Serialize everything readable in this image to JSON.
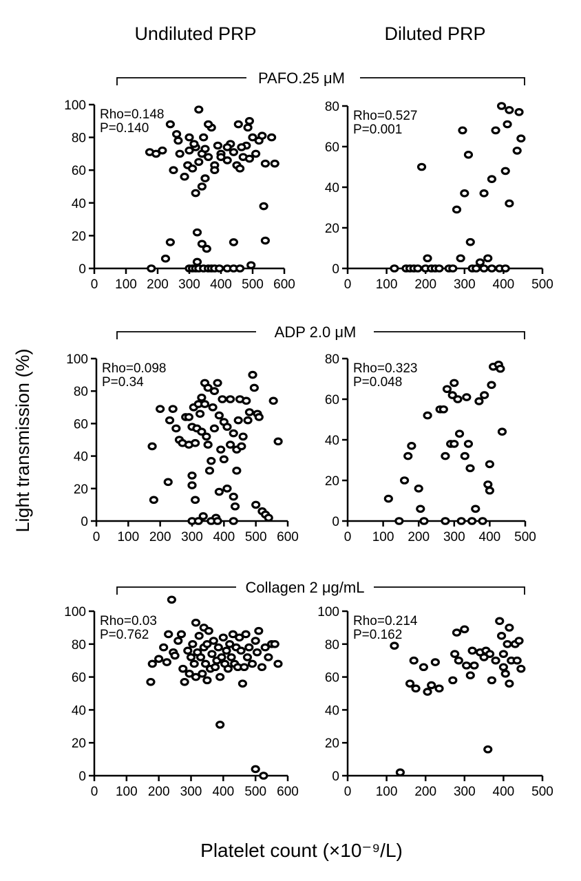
{
  "figure": {
    "col_left": "Undiluted PRP",
    "col_right": "Diluted PRP",
    "ylabel": "Light transmission (%)",
    "xlabel": "Platelet count (×10⁻⁹/L)"
  },
  "groups": [
    {
      "label": "PAFO.25 μM"
    },
    {
      "label": "ADP 2.0 μM"
    },
    {
      "label": "Collagen 2 μg/mL"
    }
  ],
  "chart_data": [
    {
      "type": "scatter",
      "id": "pafo-undiluted",
      "group": 0,
      "column": "Undiluted PRP",
      "xlim": [
        0,
        600
      ],
      "ylim": [
        0,
        100
      ],
      "xticks": [
        0,
        100,
        200,
        300,
        400,
        500,
        600
      ],
      "yticks": [
        0,
        20,
        40,
        60,
        80,
        100
      ],
      "stats": [
        "Rho=0.148",
        "P=0.140"
      ],
      "points": [
        [
          175,
          71
        ],
        [
          195,
          70
        ],
        [
          215,
          72
        ],
        [
          240,
          88
        ],
        [
          250,
          60
        ],
        [
          260,
          82
        ],
        [
          270,
          70
        ],
        [
          265,
          78
        ],
        [
          285,
          56
        ],
        [
          295,
          63
        ],
        [
          300,
          72
        ],
        [
          310,
          61
        ],
        [
          320,
          74
        ],
        [
          330,
          65
        ],
        [
          340,
          70
        ],
        [
          350,
          55
        ],
        [
          350,
          73
        ],
        [
          360,
          68
        ],
        [
          370,
          86
        ],
        [
          380,
          63
        ],
        [
          390,
          75
        ],
        [
          400,
          70
        ],
        [
          420,
          66
        ],
        [
          440,
          71
        ],
        [
          450,
          63
        ],
        [
          460,
          61
        ],
        [
          470,
          68
        ],
        [
          480,
          75
        ],
        [
          490,
          67
        ],
        [
          500,
          80
        ],
        [
          510,
          70
        ],
        [
          520,
          78
        ],
        [
          530,
          81
        ],
        [
          540,
          64
        ],
        [
          560,
          80
        ],
        [
          570,
          64
        ],
        [
          330,
          97
        ],
        [
          360,
          88
        ],
        [
          380,
          60
        ],
        [
          430,
          76
        ],
        [
          455,
          88
        ],
        [
          490,
          90
        ],
        [
          340,
          50
        ],
        [
          320,
          46
        ],
        [
          300,
          80
        ],
        [
          345,
          80
        ],
        [
          315,
          76
        ],
        [
          400,
          68
        ],
        [
          420,
          74
        ],
        [
          465,
          74
        ],
        [
          485,
          86
        ],
        [
          535,
          38
        ],
        [
          540,
          17
        ],
        [
          180,
          0
        ],
        [
          225,
          6
        ],
        [
          240,
          16
        ],
        [
          325,
          22
        ],
        [
          340,
          15
        ],
        [
          355,
          12
        ],
        [
          325,
          4
        ],
        [
          300,
          0
        ],
        [
          310,
          0
        ],
        [
          320,
          0
        ],
        [
          330,
          0
        ],
        [
          345,
          0
        ],
        [
          360,
          0
        ],
        [
          370,
          0
        ],
        [
          380,
          0
        ],
        [
          395,
          0
        ],
        [
          420,
          0
        ],
        [
          440,
          0
        ],
        [
          460,
          0
        ],
        [
          495,
          2
        ],
        [
          440,
          16
        ]
      ]
    },
    {
      "type": "scatter",
      "id": "pafo-diluted",
      "group": 0,
      "column": "Diluted PRP",
      "xlim": [
        0,
        500
      ],
      "ylim": [
        0,
        80
      ],
      "xticks": [
        0,
        100,
        200,
        300,
        400,
        500
      ],
      "yticks": [
        0,
        20,
        40,
        60,
        80
      ],
      "stats": [
        "Rho=0.527",
        "P=0.001"
      ],
      "points": [
        [
          120,
          0
        ],
        [
          150,
          0
        ],
        [
          160,
          0
        ],
        [
          170,
          0
        ],
        [
          180,
          0
        ],
        [
          190,
          50
        ],
        [
          200,
          0
        ],
        [
          205,
          5
        ],
        [
          215,
          0
        ],
        [
          225,
          0
        ],
        [
          235,
          0
        ],
        [
          260,
          0
        ],
        [
          270,
          0
        ],
        [
          280,
          29
        ],
        [
          290,
          5
        ],
        [
          295,
          68
        ],
        [
          300,
          37
        ],
        [
          310,
          56
        ],
        [
          315,
          13
        ],
        [
          320,
          0
        ],
        [
          330,
          0
        ],
        [
          340,
          3
        ],
        [
          350,
          0
        ],
        [
          350,
          37
        ],
        [
          360,
          5
        ],
        [
          370,
          0
        ],
        [
          370,
          44
        ],
        [
          380,
          68
        ],
        [
          390,
          0
        ],
        [
          395,
          80
        ],
        [
          405,
          0
        ],
        [
          405,
          48
        ],
        [
          410,
          71
        ],
        [
          415,
          32
        ],
        [
          415,
          78
        ],
        [
          435,
          58
        ],
        [
          440,
          77
        ],
        [
          445,
          64
        ]
      ]
    },
    {
      "type": "scatter",
      "id": "adp-undiluted",
      "group": 1,
      "column": "Undiluted PRP",
      "xlim": [
        0,
        600
      ],
      "ylim": [
        0,
        100
      ],
      "xticks": [
        0,
        100,
        200,
        300,
        400,
        500,
        600
      ],
      "yticks": [
        0,
        20,
        40,
        60,
        80,
        100
      ],
      "stats": [
        "Rho=0.098",
        "P=0.34"
      ],
      "points": [
        [
          175,
          46
        ],
        [
          180,
          13
        ],
        [
          200,
          69
        ],
        [
          225,
          24
        ],
        [
          230,
          62
        ],
        [
          240,
          69
        ],
        [
          250,
          57
        ],
        [
          260,
          50
        ],
        [
          270,
          48
        ],
        [
          280,
          64
        ],
        [
          290,
          64
        ],
        [
          290,
          47
        ],
        [
          300,
          22
        ],
        [
          300,
          28
        ],
        [
          300,
          58
        ],
        [
          305,
          70
        ],
        [
          310,
          13
        ],
        [
          310,
          48
        ],
        [
          315,
          57
        ],
        [
          320,
          72
        ],
        [
          325,
          66
        ],
        [
          330,
          55
        ],
        [
          330,
          76
        ],
        [
          335,
          3
        ],
        [
          340,
          72
        ],
        [
          340,
          85
        ],
        [
          345,
          52
        ],
        [
          350,
          82
        ],
        [
          350,
          47
        ],
        [
          355,
          31
        ],
        [
          360,
          37
        ],
        [
          365,
          70
        ],
        [
          370,
          57
        ],
        [
          370,
          80
        ],
        [
          375,
          2
        ],
        [
          380,
          85
        ],
        [
          385,
          65
        ],
        [
          385,
          18
        ],
        [
          390,
          44
        ],
        [
          395,
          75
        ],
        [
          400,
          38
        ],
        [
          400,
          61
        ],
        [
          410,
          20
        ],
        [
          410,
          58
        ],
        [
          420,
          75
        ],
        [
          420,
          47
        ],
        [
          430,
          54
        ],
        [
          430,
          15
        ],
        [
          435,
          9
        ],
        [
          440,
          31
        ],
        [
          440,
          44
        ],
        [
          445,
          62
        ],
        [
          450,
          75
        ],
        [
          455,
          46
        ],
        [
          460,
          52
        ],
        [
          470,
          74
        ],
        [
          475,
          62
        ],
        [
          480,
          67
        ],
        [
          490,
          90
        ],
        [
          495,
          82
        ],
        [
          500,
          10
        ],
        [
          505,
          66
        ],
        [
          510,
          64
        ],
        [
          520,
          6
        ],
        [
          530,
          4
        ],
        [
          540,
          2
        ],
        [
          555,
          74
        ],
        [
          570,
          49
        ],
        [
          300,
          0
        ],
        [
          320,
          0
        ],
        [
          360,
          0
        ],
        [
          380,
          0
        ],
        [
          430,
          0
        ]
      ]
    },
    {
      "type": "scatter",
      "id": "adp-diluted",
      "group": 1,
      "column": "Diluted PRP",
      "xlim": [
        0,
        500
      ],
      "ylim": [
        0,
        80
      ],
      "xticks": [
        0,
        100,
        200,
        300,
        400,
        500
      ],
      "yticks": [
        0,
        20,
        40,
        60,
        80
      ],
      "stats": [
        "Rho=0.323",
        "P=0.048"
      ],
      "points": [
        [
          115,
          11
        ],
        [
          145,
          0
        ],
        [
          160,
          20
        ],
        [
          170,
          32
        ],
        [
          180,
          37
        ],
        [
          200,
          16
        ],
        [
          205,
          6
        ],
        [
          215,
          0
        ],
        [
          225,
          52
        ],
        [
          260,
          55
        ],
        [
          270,
          55
        ],
        [
          275,
          0
        ],
        [
          275,
          32
        ],
        [
          280,
          65
        ],
        [
          290,
          38
        ],
        [
          295,
          62
        ],
        [
          300,
          38
        ],
        [
          300,
          68
        ],
        [
          310,
          60
        ],
        [
          315,
          43
        ],
        [
          320,
          0
        ],
        [
          330,
          32
        ],
        [
          335,
          61
        ],
        [
          340,
          38
        ],
        [
          345,
          26
        ],
        [
          350,
          0
        ],
        [
          360,
          6
        ],
        [
          370,
          59
        ],
        [
          380,
          0
        ],
        [
          385,
          62
        ],
        [
          395,
          18
        ],
        [
          400,
          28
        ],
        [
          400,
          15
        ],
        [
          405,
          67
        ],
        [
          410,
          76
        ],
        [
          425,
          77
        ],
        [
          430,
          75
        ],
        [
          435,
          44
        ]
      ]
    },
    {
      "type": "scatter",
      "id": "collagen-undiluted",
      "group": 2,
      "column": "Undiluted PRP",
      "xlim": [
        0,
        600
      ],
      "ylim": [
        0,
        100
      ],
      "xticks": [
        0,
        100,
        200,
        300,
        400,
        500,
        600
      ],
      "yticks": [
        0,
        20,
        40,
        60,
        80,
        100
      ],
      "stats": [
        "Rho=0.03",
        "P=0.762"
      ],
      "points": [
        [
          175,
          57
        ],
        [
          180,
          68
        ],
        [
          200,
          71
        ],
        [
          215,
          78
        ],
        [
          225,
          69
        ],
        [
          230,
          86
        ],
        [
          240,
          107
        ],
        [
          245,
          75
        ],
        [
          250,
          73
        ],
        [
          260,
          82
        ],
        [
          270,
          86
        ],
        [
          275,
          65
        ],
        [
          280,
          57
        ],
        [
          290,
          76
        ],
        [
          295,
          62
        ],
        [
          300,
          72
        ],
        [
          305,
          80
        ],
        [
          310,
          68
        ],
        [
          315,
          60
        ],
        [
          315,
          93
        ],
        [
          320,
          75
        ],
        [
          325,
          85
        ],
        [
          330,
          72
        ],
        [
          335,
          62
        ],
        [
          340,
          78
        ],
        [
          340,
          90
        ],
        [
          345,
          68
        ],
        [
          350,
          80
        ],
        [
          350,
          58
        ],
        [
          355,
          88
        ],
        [
          360,
          65
        ],
        [
          365,
          74
        ],
        [
          370,
          82
        ],
        [
          375,
          66
        ],
        [
          380,
          70
        ],
        [
          385,
          78
        ],
        [
          390,
          60
        ],
        [
          395,
          72
        ],
        [
          400,
          84
        ],
        [
          405,
          68
        ],
        [
          410,
          76
        ],
        [
          415,
          65
        ],
        [
          420,
          80
        ],
        [
          425,
          72
        ],
        [
          430,
          86
        ],
        [
          435,
          68
        ],
        [
          440,
          78
        ],
        [
          445,
          66
        ],
        [
          450,
          84
        ],
        [
          455,
          76
        ],
        [
          460,
          56
        ],
        [
          465,
          66
        ],
        [
          470,
          86
        ],
        [
          475,
          72
        ],
        [
          480,
          78
        ],
        [
          490,
          68
        ],
        [
          500,
          82
        ],
        [
          505,
          75
        ],
        [
          510,
          88
        ],
        [
          520,
          66
        ],
        [
          530,
          78
        ],
        [
          540,
          72
        ],
        [
          550,
          80
        ],
        [
          560,
          80
        ],
        [
          570,
          68
        ],
        [
          390,
          31
        ],
        [
          500,
          4
        ],
        [
          525,
          0
        ]
      ]
    },
    {
      "type": "scatter",
      "id": "collagen-diluted",
      "group": 2,
      "column": "Diluted PRP",
      "xlim": [
        0,
        500
      ],
      "ylim": [
        0,
        100
      ],
      "xticks": [
        0,
        100,
        200,
        300,
        400,
        500
      ],
      "yticks": [
        0,
        20,
        40,
        60,
        80,
        100
      ],
      "stats": [
        "Rho=0.214",
        "P=0.162"
      ],
      "points": [
        [
          120,
          79
        ],
        [
          135,
          2
        ],
        [
          160,
          56
        ],
        [
          170,
          70
        ],
        [
          175,
          53
        ],
        [
          195,
          66
        ],
        [
          205,
          51
        ],
        [
          215,
          55
        ],
        [
          225,
          69
        ],
        [
          235,
          53
        ],
        [
          270,
          58
        ],
        [
          275,
          74
        ],
        [
          280,
          87
        ],
        [
          285,
          70
        ],
        [
          300,
          89
        ],
        [
          305,
          67
        ],
        [
          315,
          61
        ],
        [
          320,
          76
        ],
        [
          325,
          67
        ],
        [
          340,
          75
        ],
        [
          350,
          72
        ],
        [
          355,
          76
        ],
        [
          360,
          16
        ],
        [
          365,
          74
        ],
        [
          370,
          58
        ],
        [
          380,
          70
        ],
        [
          390,
          94
        ],
        [
          395,
          85
        ],
        [
          400,
          74
        ],
        [
          400,
          66
        ],
        [
          405,
          62
        ],
        [
          410,
          80
        ],
        [
          415,
          56
        ],
        [
          415,
          90
        ],
        [
          420,
          70
        ],
        [
          430,
          80
        ],
        [
          435,
          70
        ],
        [
          440,
          82
        ],
        [
          445,
          65
        ]
      ]
    }
  ]
}
